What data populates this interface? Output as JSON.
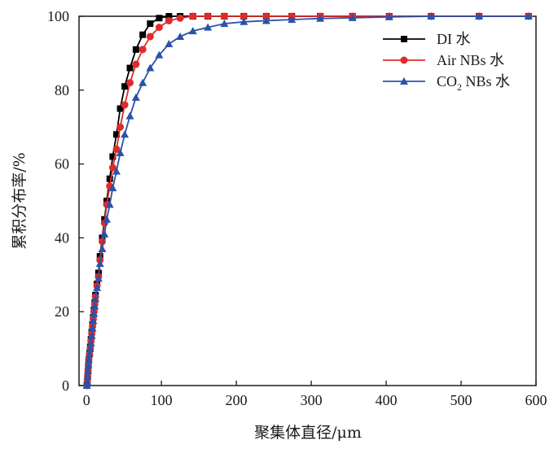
{
  "chart_data": {
    "type": "line",
    "title": "",
    "xlabel": "聚集体直径/μm",
    "ylabel": "累积分布率/%",
    "xlim": [
      -10,
      600
    ],
    "ylim": [
      0,
      100
    ],
    "x_ticks": [
      0,
      100,
      200,
      300,
      400,
      500,
      600
    ],
    "y_ticks": [
      0,
      20,
      40,
      60,
      80,
      100
    ],
    "x_tick_labels": [
      "0",
      "100",
      "200",
      "300",
      "400",
      "500",
      "600"
    ],
    "y_tick_labels": [
      "0",
      "20",
      "40",
      "60",
      "80",
      "100"
    ],
    "grid": false,
    "legend": {
      "position": "top-right"
    },
    "series": [
      {
        "name": "DI 水",
        "label_main": "DI 水",
        "label_sub": "",
        "label_tail": "",
        "color": "#000000",
        "marker": "square",
        "x": [
          0.5,
          1,
          1.5,
          2,
          2.5,
          3,
          4,
          5,
          6,
          7,
          8,
          9,
          10,
          11,
          12,
          14,
          16,
          18,
          21,
          24,
          27,
          31,
          35,
          40,
          45,
          51,
          58,
          66,
          75,
          85,
          97,
          110,
          125,
          142,
          162,
          184,
          210,
          240,
          274,
          312,
          355,
          404,
          460,
          524,
          590
        ],
        "y": [
          0,
          1,
          2.5,
          4,
          5.5,
          7,
          8.8,
          10.5,
          12.5,
          14.5,
          16.5,
          18.5,
          20.5,
          22.5,
          24.5,
          27.5,
          30.5,
          35,
          40,
          45,
          50,
          56,
          62,
          68,
          75,
          81,
          86,
          91,
          95,
          98,
          99.5,
          100,
          100,
          100,
          100,
          100,
          100,
          100,
          100,
          100,
          100,
          100,
          100,
          100,
          100
        ]
      },
      {
        "name": "Air NBs 水",
        "label_main": "Air NBs 水",
        "label_sub": "",
        "label_tail": "",
        "color": "#e02a2a",
        "marker": "circle",
        "x": [
          0.5,
          1,
          1.5,
          2,
          2.5,
          3,
          4,
          5,
          6,
          7,
          8,
          9,
          10,
          11,
          12,
          14,
          16,
          18,
          21,
          24,
          27,
          31,
          35,
          40,
          45,
          51,
          58,
          66,
          75,
          85,
          97,
          110,
          125,
          142,
          162,
          184,
          210,
          240,
          274,
          312,
          355,
          404,
          460,
          524,
          590
        ],
        "y": [
          0,
          1,
          2.5,
          4,
          5.5,
          7,
          8.5,
          10,
          12,
          14,
          16,
          18,
          20,
          22,
          24,
          27,
          29.5,
          34,
          39,
          44,
          49,
          54,
          59,
          64,
          70,
          76,
          82,
          87,
          91,
          94.5,
          97,
          98.8,
          99.5,
          100,
          100,
          100,
          100,
          100,
          100,
          100,
          100,
          100,
          100,
          100,
          100
        ]
      },
      {
        "name": "CO2 NBs 水",
        "label_main": "CO",
        "label_sub": "2",
        "label_tail": " NBs 水",
        "color": "#2a52a8",
        "marker": "triangle",
        "x": [
          0.5,
          1,
          1.5,
          2,
          2.5,
          3,
          4,
          5,
          6,
          7,
          8,
          9,
          10,
          11,
          12,
          14,
          16,
          18,
          21,
          24,
          27,
          31,
          35,
          40,
          45,
          51,
          58,
          66,
          75,
          85,
          97,
          110,
          125,
          142,
          162,
          184,
          210,
          240,
          274,
          312,
          355,
          404,
          460,
          524,
          590
        ],
        "y": [
          0,
          1,
          2.5,
          4,
          5.5,
          7,
          8.5,
          10,
          11.5,
          13.5,
          15.5,
          17.5,
          19.5,
          21.5,
          23.5,
          26.5,
          29,
          33,
          37,
          41,
          45,
          49,
          53.5,
          58,
          63,
          68,
          73,
          78,
          82,
          86,
          89.5,
          92.5,
          94.5,
          96,
          97,
          98,
          98.5,
          98.8,
          99.1,
          99.4,
          99.6,
          99.8,
          100,
          100,
          100
        ]
      }
    ]
  }
}
